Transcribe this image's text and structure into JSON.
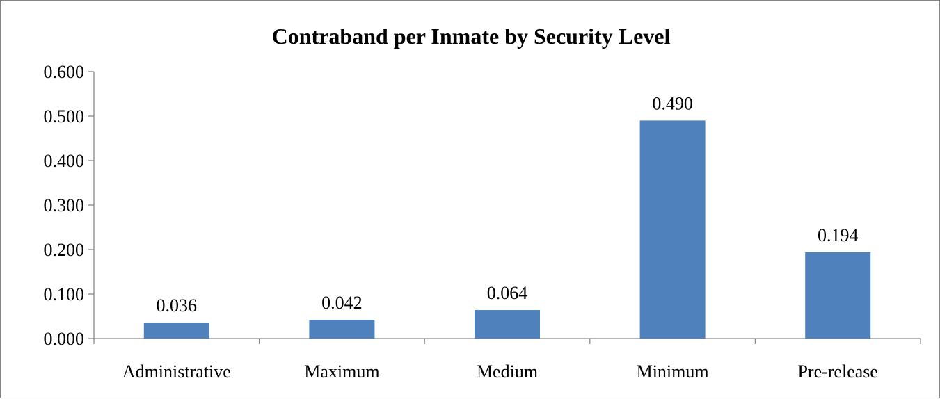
{
  "chart_data": {
    "type": "bar",
    "title": "Contraband per Inmate by Security Level",
    "xlabel": "",
    "ylabel": "",
    "categories": [
      "Administrative",
      "Maximum",
      "Medium",
      "Minimum",
      "Pre-release"
    ],
    "values": [
      0.036,
      0.042,
      0.064,
      0.49,
      0.194
    ],
    "data_labels": [
      "0.036",
      "0.042",
      "0.064",
      "0.490",
      "0.194"
    ],
    "yticks": [
      "0.000",
      "0.100",
      "0.200",
      "0.300",
      "0.400",
      "0.500",
      "0.600"
    ],
    "ylim": [
      0,
      0.6
    ],
    "grid": false,
    "legend": "none",
    "bar_color": "#4f81bd",
    "axis_color": "#868686"
  }
}
